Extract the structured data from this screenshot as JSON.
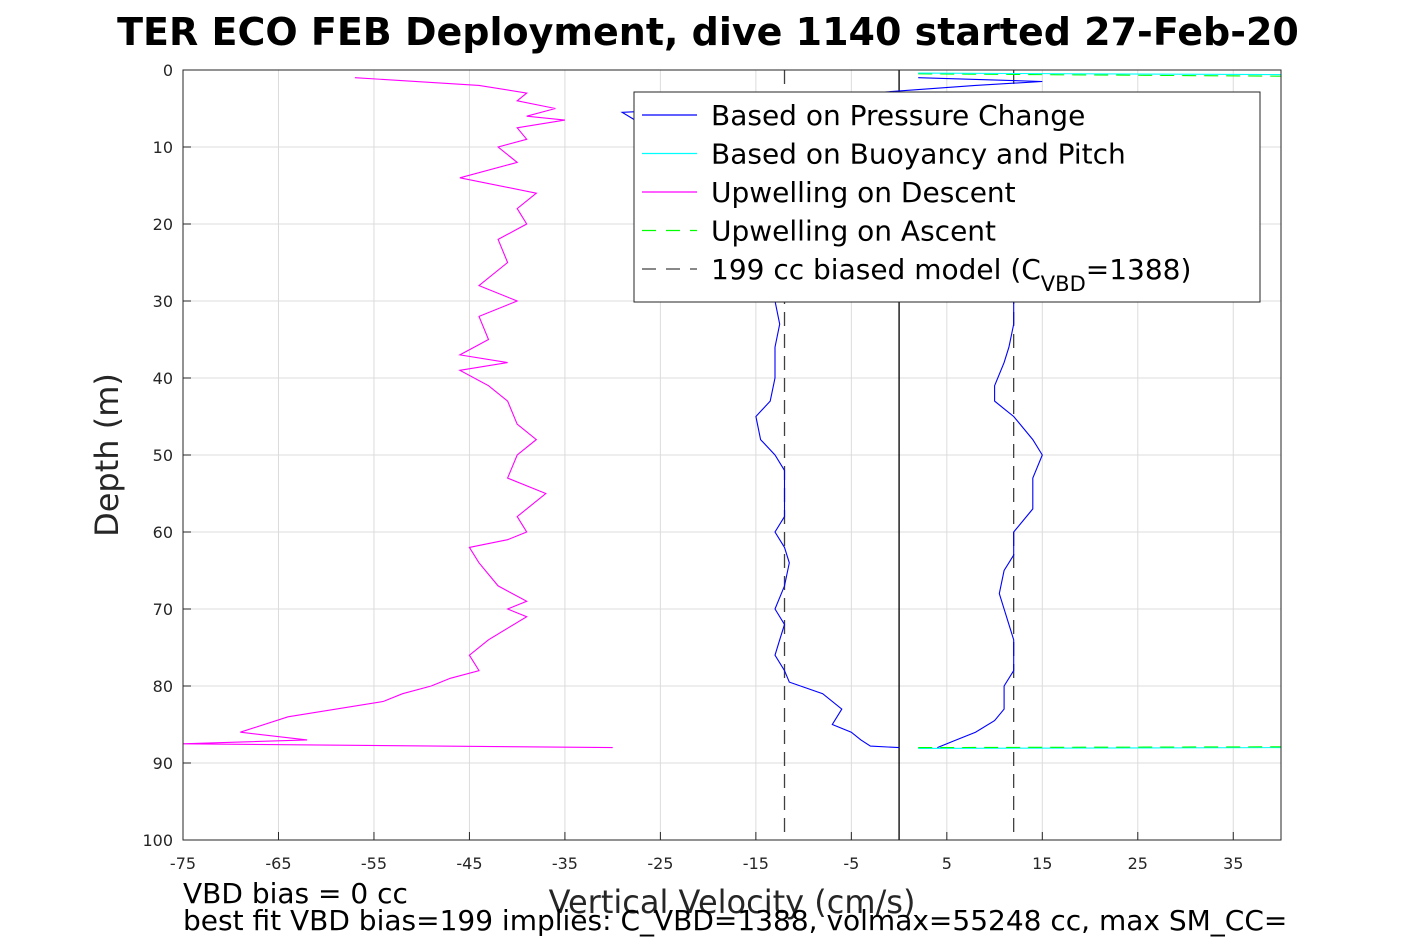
{
  "chart_data": {
    "type": "line",
    "title": "TER ECO FEB Deployment, dive 1140 started 27-Feb-20",
    "xlabel": "Vertical Velocity (cm/s)",
    "ylabel": "Depth (m)",
    "xlim": [
      -75,
      40
    ],
    "ylim": [
      0,
      100
    ],
    "y_reversed": true,
    "grid": true,
    "xticks": [
      "-75",
      "-65",
      "-55",
      "-45",
      "-35",
      "-25",
      "-15",
      "-5",
      "5",
      "15",
      "25",
      "35"
    ],
    "yticks": [
      "0",
      "10",
      "20",
      "30",
      "40",
      "50",
      "60",
      "70",
      "80",
      "90",
      "100"
    ],
    "legend_position": "top-right",
    "legend": [
      {
        "label": "Based on Pressure Change",
        "color": "#0000ff",
        "style": "solid"
      },
      {
        "label": "Based on Buoyancy and Pitch",
        "color": "#00ffff",
        "style": "solid"
      },
      {
        "label": "Upwelling on Descent",
        "color": "#ff00ff",
        "style": "solid"
      },
      {
        "label": "Upwelling on Ascent",
        "color": "#00ff00",
        "style": "dashed"
      },
      {
        "label_main": "199 cc biased model (C",
        "label_sub": "VBD",
        "label_tail": "=1388)",
        "color": "#404040",
        "style": "dashed"
      }
    ],
    "series": [
      {
        "key": "pressure_descent",
        "color": "#0000ff",
        "points": [
          [
            2,
            1
          ],
          [
            15,
            1.5
          ],
          [
            8,
            2
          ],
          [
            -3,
            3
          ],
          [
            -12,
            4
          ],
          [
            -20,
            5
          ],
          [
            -29,
            5.5
          ],
          [
            -27,
            7
          ],
          [
            -20,
            8
          ],
          [
            -15,
            9
          ],
          [
            -13,
            12
          ],
          [
            -12,
            20
          ],
          [
            -12,
            28
          ],
          [
            -13,
            30
          ],
          [
            -12.5,
            33
          ],
          [
            -13,
            36
          ],
          [
            -13,
            40
          ],
          [
            -13.5,
            43
          ],
          [
            -15,
            45
          ],
          [
            -14.5,
            48
          ],
          [
            -13,
            50
          ],
          [
            -12,
            52
          ],
          [
            -12,
            55
          ],
          [
            -12,
            58
          ],
          [
            -13,
            60
          ],
          [
            -12,
            62
          ],
          [
            -11.5,
            64
          ],
          [
            -12,
            67
          ],
          [
            -13,
            70
          ],
          [
            -12,
            72
          ],
          [
            -12.5,
            74
          ],
          [
            -13,
            76
          ],
          [
            -12,
            78
          ],
          [
            -11.5,
            79.5
          ],
          [
            -8,
            81
          ],
          [
            -6,
            83
          ],
          [
            -7,
            85
          ],
          [
            -5,
            86
          ],
          [
            -4,
            87
          ],
          [
            -3,
            87.8
          ],
          [
            0,
            88
          ]
        ]
      },
      {
        "key": "pressure_ascent",
        "color": "#0000ff",
        "points": [
          [
            4,
            88
          ],
          [
            6,
            87
          ],
          [
            8,
            86
          ],
          [
            10,
            84.5
          ],
          [
            11,
            83
          ],
          [
            11,
            80
          ],
          [
            12,
            78
          ],
          [
            12,
            74
          ],
          [
            11.5,
            72
          ],
          [
            11,
            70
          ],
          [
            10.5,
            68
          ],
          [
            11,
            65
          ],
          [
            12,
            63
          ],
          [
            12,
            60
          ],
          [
            14,
            57
          ],
          [
            14,
            53
          ],
          [
            15,
            50
          ],
          [
            14,
            48
          ],
          [
            12,
            45
          ],
          [
            11,
            44
          ],
          [
            10,
            43
          ],
          [
            10,
            41
          ],
          [
            11,
            38
          ],
          [
            11.5,
            36
          ],
          [
            12,
            33
          ],
          [
            12,
            30
          ]
        ]
      },
      {
        "key": "buoyancy_pitch",
        "color": "#00ffff",
        "points": [
          [
            2,
            88.1
          ],
          [
            40,
            88
          ]
        ]
      },
      {
        "key": "upwelling_descent",
        "color": "#ff00ff",
        "points": [
          [
            -57,
            1
          ],
          [
            -44,
            2
          ],
          [
            -39,
            3
          ],
          [
            -40,
            4
          ],
          [
            -36,
            5
          ],
          [
            -39,
            6
          ],
          [
            -35,
            6.5
          ],
          [
            -40,
            7.5
          ],
          [
            -39,
            9
          ],
          [
            -42,
            10
          ],
          [
            -40,
            12
          ],
          [
            -46,
            14
          ],
          [
            -38,
            16
          ],
          [
            -40,
            18
          ],
          [
            -39,
            20
          ],
          [
            -42,
            22
          ],
          [
            -41,
            25
          ],
          [
            -44,
            28
          ],
          [
            -40,
            30
          ],
          [
            -44,
            32
          ],
          [
            -43,
            35
          ],
          [
            -46,
            37
          ],
          [
            -41,
            38
          ],
          [
            -46,
            39
          ],
          [
            -43,
            41
          ],
          [
            -41,
            43
          ],
          [
            -40,
            46
          ],
          [
            -38,
            48
          ],
          [
            -40,
            50
          ],
          [
            -41,
            53
          ],
          [
            -37,
            55
          ],
          [
            -40,
            58
          ],
          [
            -39,
            60
          ],
          [
            -41,
            61
          ],
          [
            -45,
            62
          ],
          [
            -44,
            64
          ],
          [
            -42,
            67
          ],
          [
            -39,
            69
          ],
          [
            -41,
            70
          ],
          [
            -39,
            71
          ],
          [
            -43,
            74
          ],
          [
            -45,
            76
          ],
          [
            -44,
            78
          ],
          [
            -47,
            79
          ],
          [
            -49,
            80
          ],
          [
            -52,
            81
          ],
          [
            -54,
            82
          ],
          [
            -64,
            84
          ],
          [
            -69,
            86
          ],
          [
            -62,
            87
          ],
          [
            -75,
            87.5
          ],
          [
            -30,
            88
          ]
        ]
      },
      {
        "key": "upwelling_ascent",
        "color": "#00ff00",
        "dashed": true,
        "points": [
          [
            2,
            88
          ],
          [
            40,
            87.9
          ]
        ]
      },
      {
        "key": "upwelling_ascent_top",
        "color": "#00ff00",
        "dashed": true,
        "points": [
          [
            2,
            0.5
          ],
          [
            40,
            0.8
          ]
        ]
      },
      {
        "key": "buoyancy_top",
        "color": "#00ffff",
        "points": [
          [
            2,
            0.4
          ],
          [
            40,
            0.6
          ]
        ]
      }
    ],
    "reference_lines": [
      {
        "x": -12,
        "color": "#404040",
        "style": "dashed"
      },
      {
        "x": 12,
        "color": "#404040",
        "style": "dashed"
      },
      {
        "x": 0,
        "color": "#000000",
        "style": "solid"
      }
    ]
  },
  "notes": {
    "line1": "VBD bias = 0 cc",
    "line2": "best fit VBD bias=199 implies: C_VBD=1388, volmax=55248 cc, max SM_CC="
  }
}
